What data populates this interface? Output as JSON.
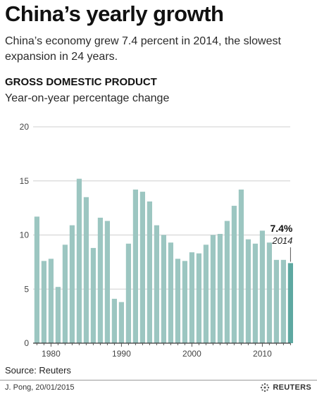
{
  "header": {
    "title": "China’s yearly growth",
    "subtitle": "China’s economy grew 7.4 percent in 2014, the slowest expansion in 24 years."
  },
  "chart_header": {
    "section": "GROSS DOMESTIC PRODUCT",
    "subsection": "Year-on-year percentage change"
  },
  "chart_data": {
    "type": "bar",
    "title": "GROSS DOMESTIC PRODUCT",
    "subtitle": "Year-on-year percentage change",
    "xlabel": "",
    "ylabel": "",
    "ylim": [
      0,
      20
    ],
    "yticks": [
      "0",
      "5",
      "10",
      "15",
      "20"
    ],
    "xticks": [
      "1980",
      "1990",
      "2000",
      "2010"
    ],
    "grid": true,
    "categories": [
      1978,
      1979,
      1980,
      1981,
      1982,
      1983,
      1984,
      1985,
      1986,
      1987,
      1988,
      1989,
      1990,
      1991,
      1992,
      1993,
      1994,
      1995,
      1996,
      1997,
      1998,
      1999,
      2000,
      2001,
      2002,
      2003,
      2004,
      2005,
      2006,
      2007,
      2008,
      2009,
      2010,
      2011,
      2012,
      2013,
      2014
    ],
    "values": [
      11.7,
      7.6,
      7.8,
      5.2,
      9.1,
      10.9,
      15.2,
      13.5,
      8.8,
      11.6,
      11.3,
      4.1,
      3.8,
      9.2,
      14.2,
      14.0,
      13.1,
      10.9,
      10.0,
      9.3,
      7.8,
      7.6,
      8.4,
      8.3,
      9.1,
      10.0,
      10.1,
      11.3,
      12.7,
      14.2,
      9.6,
      9.2,
      10.4,
      9.3,
      7.7,
      7.7,
      7.4
    ],
    "bar_color": "#9cc6c1",
    "highlight_color": "#5ea8a1",
    "annotation": {
      "value": "7.4%",
      "label": "2014"
    }
  },
  "footer": {
    "source": "Source: Reuters",
    "credit": "J. Pong, 20/01/2015",
    "logo_text": "REUTERS"
  }
}
